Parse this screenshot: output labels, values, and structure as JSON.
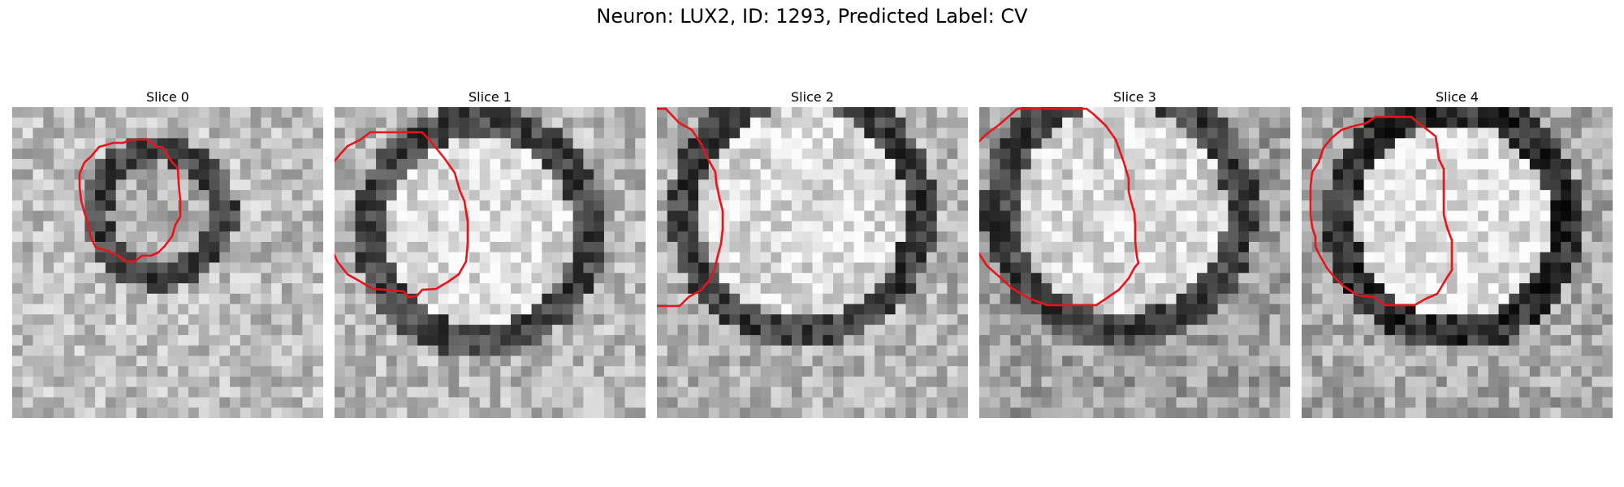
{
  "figure": {
    "title": "Neuron: LUX2, ID: 1293, Predicted Label: CV"
  },
  "panels": [
    {
      "title": "Slice 0",
      "contour_color": "#e8141c"
    },
    {
      "title": "Slice 1",
      "contour_color": "#e8141c"
    },
    {
      "title": "Slice 2",
      "contour_color": "#e8141c"
    },
    {
      "title": "Slice 3",
      "contour_color": "#e8141c"
    },
    {
      "title": "Slice 4",
      "contour_color": "#e8141c"
    }
  ],
  "colormap": "gray"
}
